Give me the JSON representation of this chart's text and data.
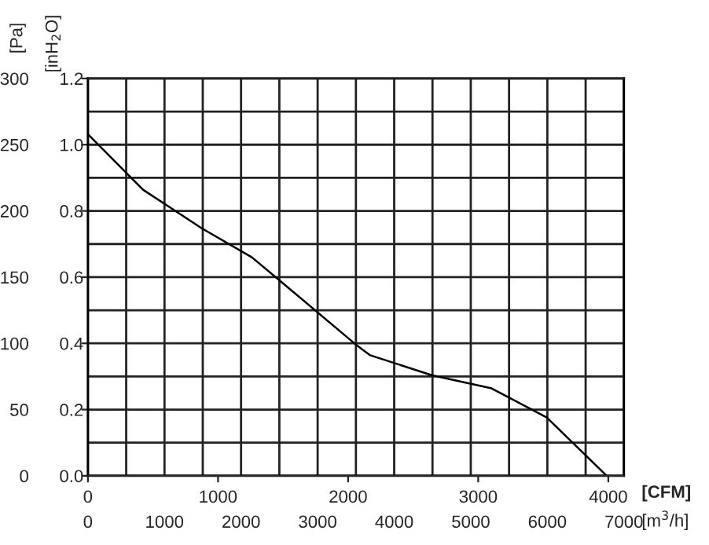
{
  "chart_data": {
    "type": "line",
    "x": [
      0,
      424,
      873,
      1260,
      1467,
      2073,
      2170,
      2642,
      3103,
      3527,
      3988
    ],
    "series": [
      {
        "color": "#000000",
        "values": [
          258,
          216,
          187,
          165,
          148,
          98,
          91,
          76,
          66,
          44,
          0
        ]
      }
    ],
    "xlabel": "[CFM]",
    "x2label": "[m$^{3}$/h]",
    "ylabel": "[Pa]",
    "y2label": "[inH$_{2}$O]",
    "xlim": [
      0,
      4120
    ],
    "xticks": [
      0,
      1000,
      2000,
      3000,
      4000
    ],
    "x2lim": [
      0,
      7000
    ],
    "x2ticks": [
      0,
      1000,
      2000,
      3000,
      4000,
      5000,
      6000,
      7000
    ],
    "ylim": [
      0,
      300
    ],
    "yticks": [
      0,
      50,
      100,
      150,
      200,
      250,
      300
    ],
    "y2lim": [
      0,
      1.2
    ],
    "y2ticks": [
      {
        "value": 0,
        "label": "0.0"
      },
      {
        "value": 0.2,
        "label": "0.2"
      },
      {
        "value": 0.4,
        "label": "0.4"
      },
      {
        "value": 0.6,
        "label": "0.6"
      },
      {
        "value": 0.8,
        "label": "0.8"
      },
      {
        "value": 1.0,
        "label": "1.0"
      },
      {
        "value": 1.2,
        "label": "1.2"
      }
    ],
    "grid": true,
    "legend": false,
    "marker": "none",
    "line_style": "solid"
  }
}
